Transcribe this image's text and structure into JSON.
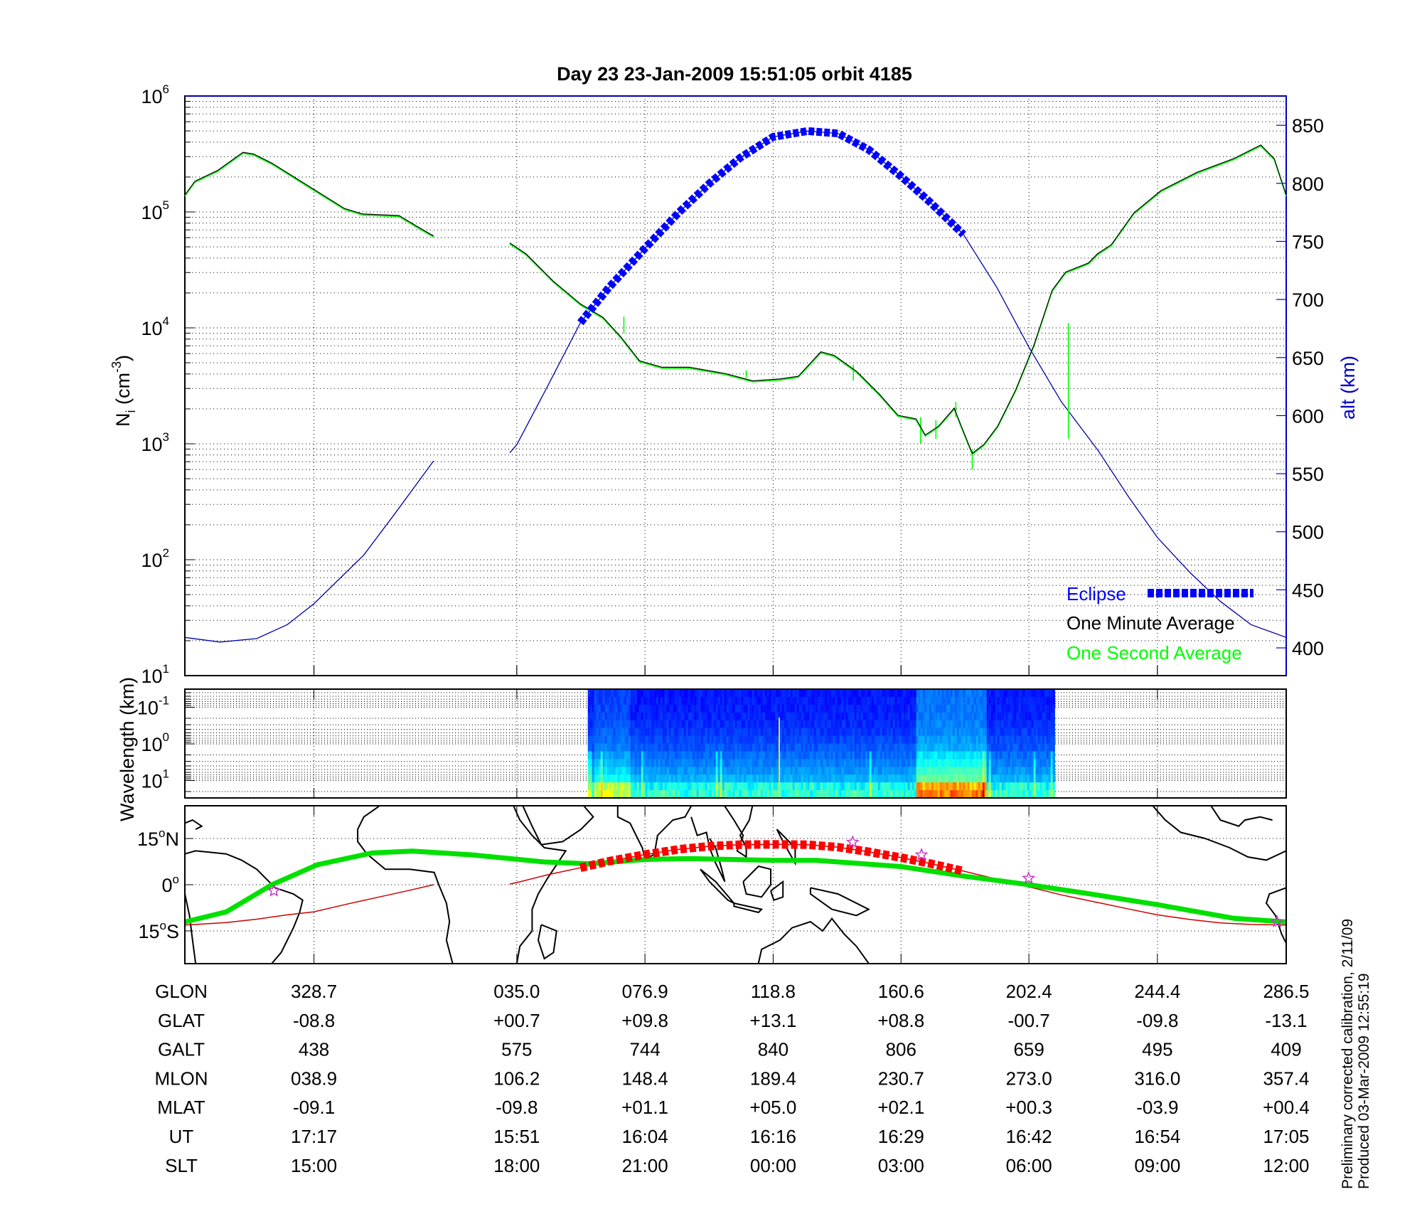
{
  "title": "Day 23  23-Jan-2009 15:51:05   orbit 4185",
  "colors": {
    "one_minute_average": "#000000",
    "one_second_average": "#00ff00",
    "altitude": "#0000aa",
    "eclipse": "#0000ff",
    "track": "#cc0000",
    "track_eclipse": "#ff0000",
    "magnetic_equator": "#00e000",
    "stars": "#cc33cc"
  },
  "chart_data": [
    {
      "type": "line",
      "panel": "density",
      "xlim": [
        286.5,
        646.5
      ],
      "xlabel": "",
      "yscale": "log",
      "ylim": [
        10,
        1000000
      ],
      "ylabel": {
        "main": "N",
        "sub": "i",
        "rest": " (cm",
        "sup": "-3",
        "end": ")"
      },
      "yticks": [
        {
          "base": "10",
          "exp": "1",
          "value": 10
        },
        {
          "base": "10",
          "exp": "2",
          "value": 100
        },
        {
          "base": "10",
          "exp": "3",
          "value": 1000
        },
        {
          "base": "10",
          "exp": "4",
          "value": 10000
        },
        {
          "base": "10",
          "exp": "5",
          "value": 100000
        },
        {
          "base": "10",
          "exp": "6",
          "value": 1000000
        }
      ],
      "y2label": "alt (km)",
      "y2lim": [
        380,
        875
      ],
      "y2ticks": [
        "400",
        "450",
        "500",
        "550",
        "600",
        "650",
        "700",
        "750",
        "800",
        "850"
      ],
      "grid": true,
      "legend": {
        "placement": "bottom-right",
        "entries": [
          {
            "label": "Eclipse",
            "color": "#0000ff"
          },
          {
            "label": "One Minute Average",
            "color": "#000000"
          },
          {
            "label": "One Second Average",
            "color": "#00ff00"
          }
        ]
      },
      "density_segments": [
        [
          [
            286.5,
            140000
          ],
          [
            289.8,
            184000
          ],
          [
            297.2,
            228000
          ],
          [
            305.5,
            327000
          ],
          [
            309.0,
            316000
          ],
          [
            315.0,
            263000
          ],
          [
            326.8,
            168000
          ],
          [
            338.7,
            107000
          ],
          [
            344.6,
            96000
          ],
          [
            356.5,
            93000
          ],
          [
            362.4,
            75000
          ],
          [
            367.8,
            62000
          ]
        ],
        [
          [
            392.7,
            54000
          ],
          [
            398.0,
            43500
          ],
          [
            406.9,
            25300
          ],
          [
            415.8,
            16100
          ],
          [
            423.2,
            12300
          ],
          [
            429.1,
            8300
          ],
          [
            435.1,
            5200
          ],
          [
            442.5,
            4570
          ],
          [
            451.4,
            4570
          ],
          [
            463.2,
            4030
          ],
          [
            472.1,
            3490
          ],
          [
            481.0,
            3620
          ],
          [
            487.0,
            3820
          ],
          [
            494.4,
            6210
          ],
          [
            498.8,
            5780
          ],
          [
            506.2,
            4180
          ],
          [
            513.6,
            2660
          ],
          [
            519.6,
            1760
          ],
          [
            525.5,
            1640
          ],
          [
            528.5,
            1190
          ],
          [
            532.9,
            1420
          ],
          [
            538.0,
            2030
          ],
          [
            540.3,
            1420
          ],
          [
            543.9,
            826
          ],
          [
            547.7,
            989
          ],
          [
            552.2,
            1420
          ],
          [
            558.1,
            2920
          ],
          [
            564.1,
            7180
          ],
          [
            570.0,
            21100
          ],
          [
            574.4,
            30300
          ],
          [
            581.9,
            36300
          ],
          [
            584.8,
            43500
          ],
          [
            589.3,
            52100
          ],
          [
            596.7,
            98000
          ],
          [
            605.6,
            153000
          ],
          [
            617.4,
            220000
          ],
          [
            629.3,
            288000
          ],
          [
            638.2,
            378000
          ],
          [
            642.6,
            288000
          ],
          [
            646.5,
            140000
          ]
        ]
      ],
      "one_second_spikes": [
        {
          "lon": 430.0,
          "low": 9000,
          "high": 12500
        },
        {
          "lon": 470.0,
          "low": 3700,
          "high": 4300
        },
        {
          "lon": 505.0,
          "low": 3500,
          "high": 4800
        },
        {
          "lon": 527.0,
          "low": 1000,
          "high": 1700
        },
        {
          "lon": 532.0,
          "low": 1100,
          "high": 1600
        },
        {
          "lon": 538.5,
          "low": 1700,
          "high": 2300
        },
        {
          "lon": 543.9,
          "low": 600,
          "high": 900
        },
        {
          "lon": 575.3,
          "low": 1100,
          "high": 11000
        }
      ],
      "altitude_segments": [
        [
          [
            286.5,
            409
          ],
          [
            298,
            405
          ],
          [
            310,
            408
          ],
          [
            320,
            420
          ],
          [
            328.7,
            438
          ],
          [
            345,
            480
          ],
          [
            355,
            515
          ],
          [
            367.8,
            561
          ]
        ],
        [
          [
            392.7,
            568
          ],
          [
            395,
            575
          ],
          [
            405,
            625
          ],
          [
            415.8,
            680
          ],
          [
            425,
            710
          ],
          [
            436.9,
            744
          ],
          [
            448,
            775
          ],
          [
            458,
            800
          ],
          [
            468,
            822
          ],
          [
            478.8,
            840
          ],
          [
            490,
            845
          ],
          [
            500,
            843
          ],
          [
            510,
            829
          ],
          [
            520.6,
            806
          ],
          [
            530,
            784
          ],
          [
            541,
            756
          ],
          [
            552,
            710
          ],
          [
            562.4,
            659
          ],
          [
            573,
            612
          ],
          [
            585,
            570
          ],
          [
            595,
            530
          ],
          [
            604.4,
            495
          ],
          [
            615,
            465
          ],
          [
            625,
            440
          ],
          [
            635,
            420
          ],
          [
            646.5,
            409
          ]
        ]
      ],
      "eclipse_range": [
        415.8,
        541
      ]
    },
    {
      "type": "heatmap",
      "panel": "spectrogram",
      "ylabel": "Wavelength (km)",
      "yscale": "log",
      "yreversed": true,
      "yticks": [
        {
          "base": "10",
          "exp": "-1",
          "value": 0.1
        },
        {
          "base": "10",
          "exp": "0",
          "value": 1
        },
        {
          "base": "10",
          "exp": "1",
          "value": 10
        }
      ],
      "data_range": [
        418.2,
        570.6
      ],
      "colormap": "jet"
    },
    {
      "type": "map",
      "panel": "ground-track",
      "ylim": [
        -25.5,
        25.5
      ],
      "yticks": [
        {
          "value": "15",
          "unit": "o",
          "hemi": "N",
          "lat": 15
        },
        {
          "value": "0",
          "unit": "o",
          "hemi": "",
          "lat": 0
        },
        {
          "value": "15",
          "unit": "o",
          "hemi": "S",
          "lat": -15
        }
      ],
      "track_segments": [
        [
          [
            286.5,
            -13.1
          ],
          [
            300,
            -12.3
          ],
          [
            310,
            -11.2
          ],
          [
            320,
            -9.8
          ],
          [
            328.7,
            -8.8
          ],
          [
            340,
            -6.2
          ],
          [
            350,
            -4.0
          ],
          [
            360,
            -1.8
          ],
          [
            367.8,
            0.0
          ]
        ],
        [
          [
            392.7,
            0.2
          ],
          [
            395,
            0.7
          ],
          [
            405,
            3.2
          ],
          [
            415.8,
            5.5
          ],
          [
            425,
            7.6
          ],
          [
            436.9,
            9.8
          ],
          [
            448,
            11.5
          ],
          [
            458,
            12.5
          ],
          [
            468,
            13.0
          ],
          [
            478.8,
            13.1
          ],
          [
            490,
            13.0
          ],
          [
            500,
            12.2
          ],
          [
            510,
            10.7
          ],
          [
            520.6,
            8.8
          ],
          [
            530,
            6.9
          ],
          [
            541,
            4.4
          ],
          [
            552,
            1.8
          ],
          [
            562.4,
            -0.7
          ],
          [
            573,
            -3.3
          ],
          [
            585,
            -5.8
          ],
          [
            595,
            -7.9
          ],
          [
            604.4,
            -9.8
          ],
          [
            615,
            -11.3
          ],
          [
            625,
            -12.4
          ],
          [
            635,
            -12.9
          ],
          [
            646.5,
            -13.1
          ]
        ]
      ],
      "track_eclipse_range": [
        415.8,
        541
      ],
      "magnetic_equator": [
        [
          286.5,
          -12.1
        ],
        [
          300.1,
          -8.8
        ],
        [
          315,
          0
        ],
        [
          329.8,
          6.5
        ],
        [
          347.6,
          10.3
        ],
        [
          360.9,
          10.9
        ],
        [
          380.2,
          9.7
        ],
        [
          403.9,
          7.4
        ],
        [
          418.8,
          6.8
        ],
        [
          436.9,
          8.2
        ],
        [
          451.4,
          8.5
        ],
        [
          478.8,
          7.9
        ],
        [
          492.9,
          7.9
        ],
        [
          520.6,
          5.9
        ],
        [
          540.3,
          2.9
        ],
        [
          562.4,
          0
        ],
        [
          581.9,
          -2.9
        ],
        [
          604.4,
          -6.5
        ],
        [
          629.3,
          -10.9
        ],
        [
          646.5,
          -12.1
        ]
      ],
      "stars": [
        [
          315.6,
          -2
        ],
        [
          504.8,
          13.8
        ],
        [
          527.3,
          9.7
        ],
        [
          562.3,
          2.1
        ],
        [
          643.5,
          -12
        ]
      ]
    }
  ],
  "table": {
    "column_lons": [
      328.7,
      395.0,
      436.9,
      478.8,
      520.6,
      562.4,
      604.4,
      646.5
    ],
    "rows": [
      {
        "label": "GLON",
        "values": [
          "328.7",
          "035.0",
          "076.9",
          "118.8",
          "160.6",
          "202.4",
          "244.4",
          "286.5"
        ]
      },
      {
        "label": "GLAT",
        "values": [
          "-08.8",
          "+00.7",
          "+09.8",
          "+13.1",
          "+08.8",
          "-00.7",
          "-09.8",
          "-13.1"
        ]
      },
      {
        "label": "GALT",
        "values": [
          "438",
          "575",
          "744",
          "840",
          "806",
          "659",
          "495",
          "409"
        ]
      },
      {
        "label": "MLON",
        "values": [
          "038.9",
          "106.2",
          "148.4",
          "189.4",
          "230.7",
          "273.0",
          "316.0",
          "357.4"
        ]
      },
      {
        "label": "MLAT",
        "values": [
          "-09.1",
          "-09.8",
          "+01.1",
          "+05.0",
          "+02.1",
          "+00.3",
          "-03.9",
          "+00.4"
        ]
      },
      {
        "label": "UT",
        "values": [
          "17:17",
          "15:51",
          "16:04",
          "16:16",
          "16:29",
          "16:42",
          "16:54",
          "17:05"
        ]
      },
      {
        "label": "SLT",
        "values": [
          "15:00",
          "18:00",
          "21:00",
          "00:00",
          "03:00",
          "06:00",
          "09:00",
          "12:00"
        ]
      }
    ]
  },
  "footnotes": [
    "Preliminary corrected calibration, 2/11/09",
    "Produced 03-Mar-2009 12:55:19"
  ]
}
